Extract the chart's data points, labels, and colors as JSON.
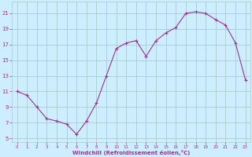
{
  "x": [
    0,
    1,
    2,
    3,
    4,
    5,
    6,
    7,
    8,
    9,
    10,
    11,
    12,
    13,
    14,
    15,
    16,
    17,
    18,
    19,
    20,
    21,
    22,
    23
  ],
  "y": [
    11.0,
    10.5,
    9.0,
    7.5,
    7.2,
    6.8,
    5.5,
    7.2,
    9.5,
    13.0,
    16.5,
    17.2,
    17.5,
    15.5,
    17.5,
    18.5,
    19.2,
    21.0,
    21.2,
    21.0,
    20.2,
    19.5,
    17.2,
    12.5
  ],
  "line_color": "#993399",
  "marker": "+",
  "marker_size": 3.5,
  "line_width": 0.8,
  "bg_color": "#cceeff",
  "grid_color": "#aacccc",
  "xlabel": "Windchill (Refroidissement éolien,°C)",
  "xlabel_color": "#993399",
  "tick_color": "#993399",
  "xlim": [
    -0.5,
    23.5
  ],
  "ylim": [
    4.5,
    22.5
  ],
  "yticks": [
    5,
    7,
    9,
    11,
    13,
    15,
    17,
    19,
    21
  ],
  "xticks": [
    0,
    1,
    2,
    3,
    4,
    5,
    6,
    7,
    8,
    9,
    10,
    11,
    12,
    13,
    14,
    15,
    16,
    17,
    18,
    19,
    20,
    21,
    22,
    23
  ],
  "figsize": [
    3.2,
    2.0
  ],
  "dpi": 100
}
